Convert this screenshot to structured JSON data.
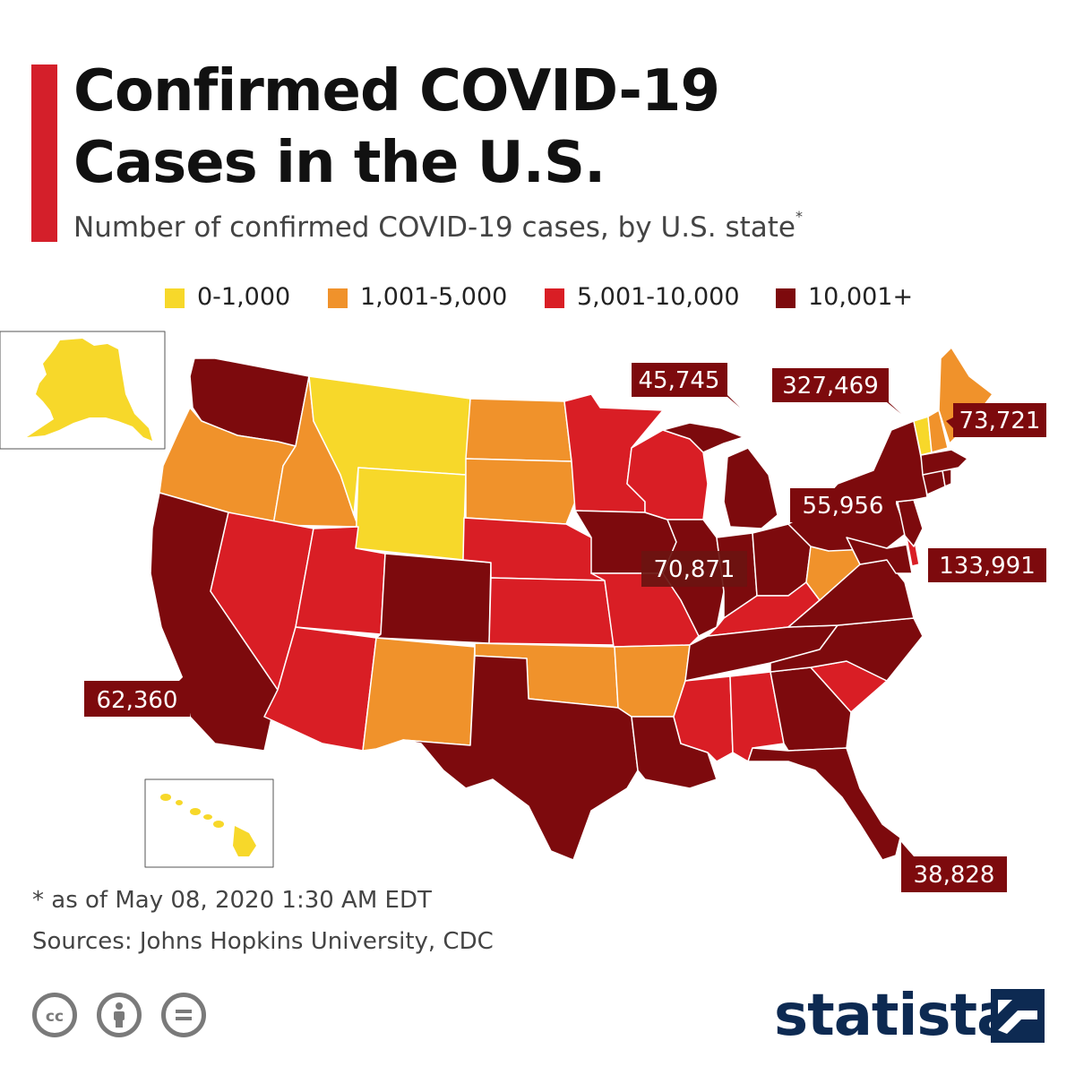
{
  "title_line1": "Confirmed COVID-19",
  "title_line2": "Cases in the U.S.",
  "subtitle": "Number of confirmed COVID-19 cases, by U.S. state",
  "subtitle_marker": "*",
  "legend": [
    {
      "label": "0-1,000",
      "color": "#f7d82a"
    },
    {
      "label": "1,001-5,000",
      "color": "#f0922b"
    },
    {
      "label": "5,001-10,000",
      "color": "#d91e25"
    },
    {
      "label": "10,001+",
      "color": "#7d0a0d"
    }
  ],
  "callouts": [
    {
      "state": "Illinois",
      "value": "70,871"
    },
    {
      "state": "New York",
      "value": "327,469"
    },
    {
      "state": "Massachusetts",
      "value": "73,721"
    },
    {
      "state": "Pennsylvania",
      "value": "55,956"
    },
    {
      "state": "New Jersey",
      "value": "133,991"
    },
    {
      "state": "Michigan",
      "value": "45,745"
    },
    {
      "state": "California",
      "value": "62,360"
    },
    {
      "state": "Florida",
      "value": "38,828"
    }
  ],
  "footnote": "* as of May 08, 2020 1:30 AM EDT",
  "sources": "Sources: Johns Hopkins University, CDC",
  "license_icons": [
    "cc-icon",
    "attribution-icon",
    "no-derivatives-icon"
  ],
  "brand": "statista",
  "brand_color": "#0d2a52",
  "accent_color": "#d41f2a"
}
